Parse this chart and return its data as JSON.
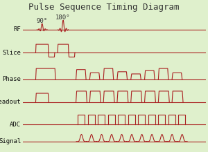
{
  "title": "Pulse Sequence Timing Diagram",
  "title_fontsize": 9,
  "bg_color": "#dff0cc",
  "line_color": "#aa2222",
  "label_color": "#111111",
  "label_fontsize": 6.5,
  "annot_fontsize": 6.5,
  "annot_color": "#333333",
  "channels": [
    "RF",
    "Slice",
    "Phase",
    "Readout",
    "ADC",
    "Signal"
  ],
  "fig_width": 3.0,
  "fig_height": 2.2,
  "dpi": 100,
  "T": 10.0
}
